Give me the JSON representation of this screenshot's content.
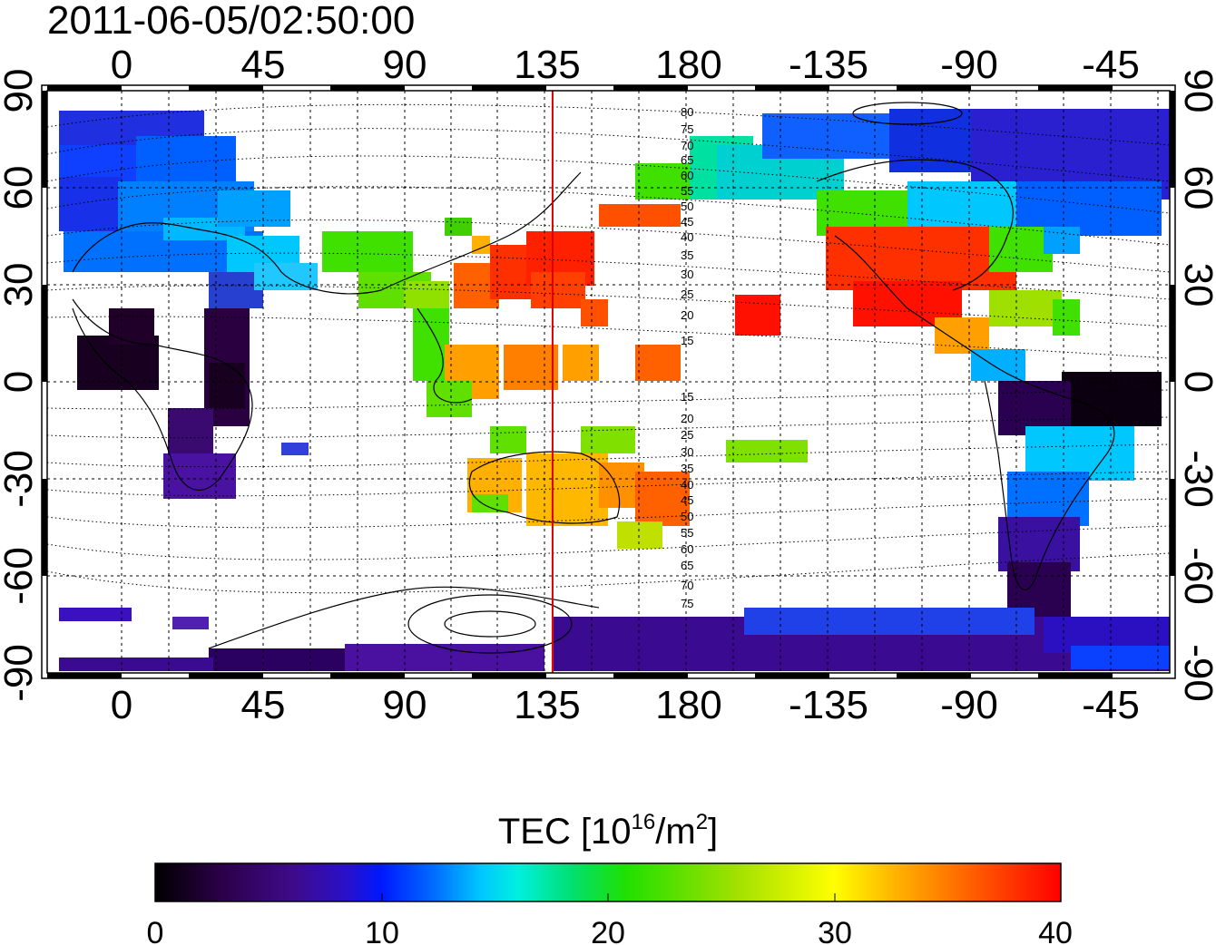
{
  "title": "2011-06-05/02:50:00",
  "map": {
    "lon_tick_labels": [
      "0",
      "45",
      "90",
      "135",
      "180",
      "-135",
      "-90",
      "-45"
    ],
    "lat_tick_labels": [
      "90",
      "60",
      "30",
      "0",
      "-30",
      "-60",
      "-90"
    ],
    "terminator_longitude": 137,
    "terminator_color": "#dd0000",
    "grid": "dotted",
    "north_contour_labels": [
      "80",
      "75",
      "70",
      "65",
      "60",
      "55",
      "50",
      "45",
      "40",
      "35",
      "30",
      "25",
      "20",
      "15"
    ],
    "south_contour_labels": [
      "15",
      "20",
      "25",
      "30",
      "35",
      "40",
      "45",
      "50",
      "55",
      "60",
      "65",
      "70",
      "75"
    ]
  },
  "colorbar": {
    "label_prefix": "TEC  [10",
    "label_sup": "16",
    "label_mid": "/m",
    "label_sup2": "2",
    "label_suffix": "]",
    "tick_labels": [
      "0",
      "10",
      "20",
      "30",
      "40"
    ],
    "colors": [
      "#000000",
      "#2a0045",
      "#3f0a88",
      "#2a10c8",
      "#0018ff",
      "#0070ff",
      "#00c8ff",
      "#00f0e0",
      "#00e070",
      "#20e000",
      "#a0e000",
      "#ffff00",
      "#ffb000",
      "#ff6000",
      "#ff0000"
    ]
  }
}
